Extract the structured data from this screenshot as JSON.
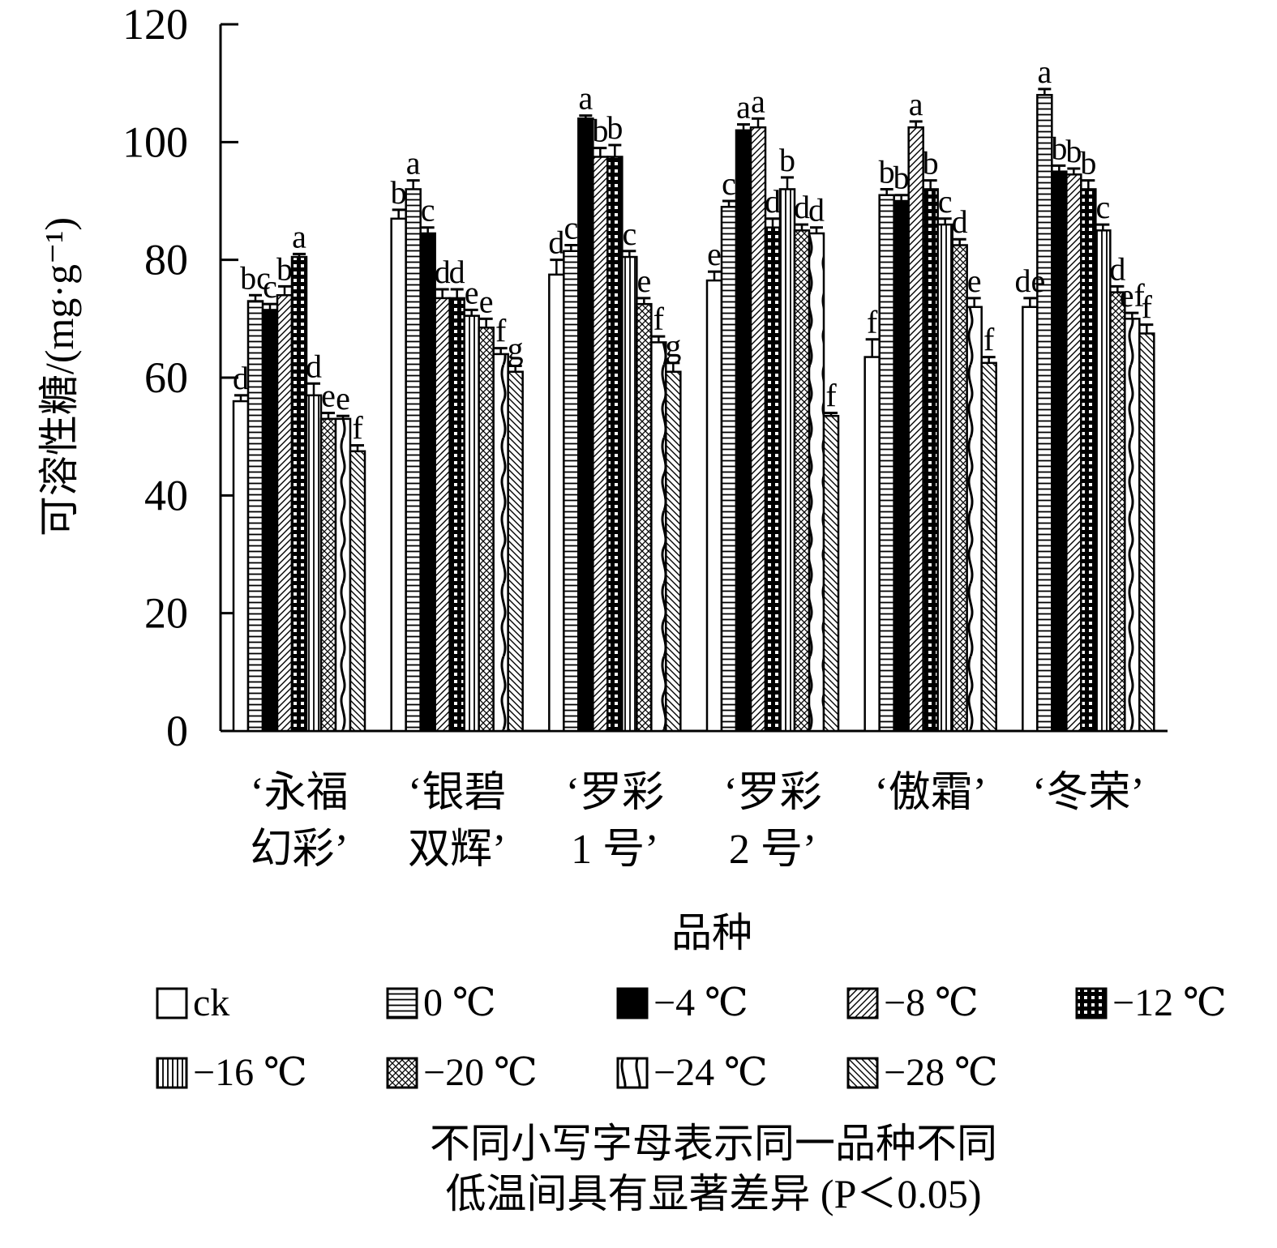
{
  "chart_data": {
    "type": "bar",
    "xlabel": "品种",
    "ylabel": "可溶性糖/(mg·g⁻¹)",
    "ylim": [
      0,
      120
    ],
    "yticks": [
      0,
      20,
      40,
      60,
      80,
      100,
      120
    ],
    "categories": [
      [
        "‘永福",
        "幻彩’"
      ],
      [
        "‘银碧",
        "双辉’"
      ],
      [
        "‘罗彩",
        "1 号’"
      ],
      [
        "‘罗彩",
        "2 号’"
      ],
      [
        "‘傲霜’"
      ],
      [
        "‘冬荣’"
      ]
    ],
    "series": [
      {
        "name": "ck",
        "pattern": "empty",
        "values": [
          56,
          87,
          77.5,
          76.5,
          63.5,
          72
        ],
        "errors": [
          1,
          1.5,
          2.5,
          1.5,
          3,
          1.5
        ],
        "letters": [
          "d",
          "b",
          "d",
          "e",
          "f",
          "de"
        ]
      },
      {
        "name": "0 ℃",
        "pattern": "hlines",
        "values": [
          73,
          92,
          81.5,
          89,
          91,
          108
        ],
        "errors": [
          1,
          1.5,
          1,
          1,
          1,
          1
        ],
        "letters": [
          "bc",
          "a",
          "c",
          "c",
          "b",
          "a"
        ]
      },
      {
        "name": "−4 ℃",
        "pattern": "solid",
        "values": [
          71.5,
          84.5,
          104,
          102,
          90,
          95
        ],
        "errors": [
          1,
          1,
          0.5,
          1,
          1,
          1
        ],
        "letters": [
          "c",
          "c",
          "a",
          "a",
          "b",
          "b"
        ]
      },
      {
        "name": "−8 ℃",
        "pattern": "diag",
        "values": [
          74,
          73.5,
          97.5,
          102.5,
          102.5,
          94.5
        ],
        "errors": [
          1.5,
          1.5,
          1.5,
          1.5,
          1,
          1
        ],
        "letters": [
          "b",
          "d",
          "b",
          "a",
          "a",
          "b"
        ]
      },
      {
        "name": "−12 ℃",
        "pattern": "grid",
        "values": [
          80.5,
          73.5,
          97.5,
          85.5,
          92,
          92
        ],
        "errors": [
          0.5,
          1.5,
          2,
          1.5,
          1.5,
          1.5
        ],
        "letters": [
          "a",
          "d",
          "b",
          "d",
          "b",
          "b"
        ]
      },
      {
        "name": "−16 ℃",
        "pattern": "vlines",
        "values": [
          57,
          70.5,
          80.5,
          92,
          86,
          85
        ],
        "errors": [
          2,
          1,
          1,
          2,
          1,
          1
        ],
        "letters": [
          "d",
          "e",
          "c",
          "b",
          "c",
          "c"
        ]
      },
      {
        "name": "−20 ℃",
        "pattern": "cross",
        "values": [
          53,
          68.5,
          72.5,
          85,
          82.5,
          74.5
        ],
        "errors": [
          1,
          1.5,
          1,
          1,
          1,
          1
        ],
        "letters": [
          "e",
          "e",
          "e",
          "d",
          "d",
          "d"
        ]
      },
      {
        "name": "−24 ℃",
        "pattern": "wave",
        "values": [
          53,
          64,
          66,
          84.5,
          72,
          70
        ],
        "errors": [
          0.5,
          1,
          1,
          1,
          1.5,
          1
        ],
        "letters": [
          "e",
          "f",
          "f",
          "d",
          "e",
          "ef"
        ]
      },
      {
        "name": "−28 ℃",
        "pattern": "revdiag",
        "values": [
          47.5,
          61,
          61,
          53.5,
          62.5,
          67.5
        ],
        "errors": [
          1,
          1,
          1.5,
          0.5,
          1,
          1.5
        ],
        "letters": [
          "f",
          "g",
          "g",
          "f",
          "f",
          "f"
        ]
      }
    ]
  },
  "note": {
    "line1": "不同小写字母表示同一品种不同",
    "line2": "低温间具有显著差异 (P＜0.05)"
  }
}
